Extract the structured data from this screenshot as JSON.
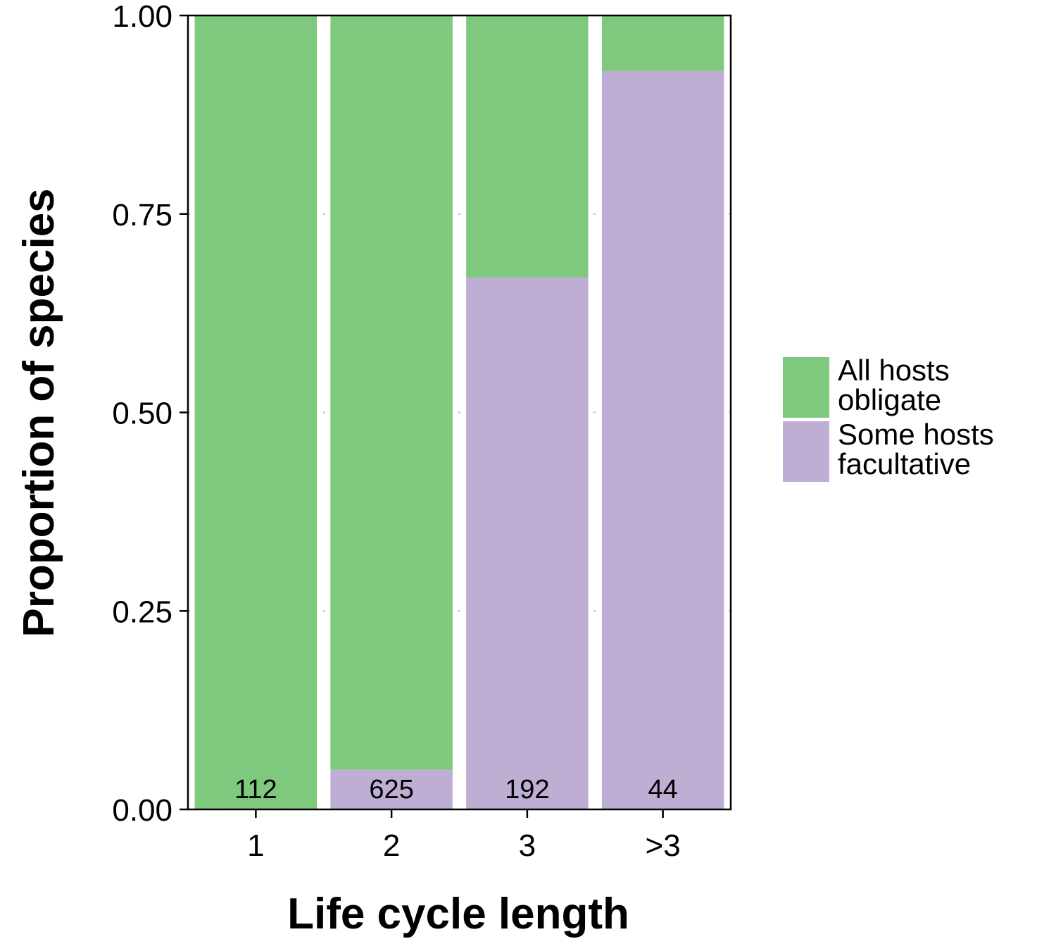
{
  "chart_data": {
    "type": "bar",
    "stacked": true,
    "xlabel": "Life cycle length",
    "ylabel": "Proportion of species",
    "categories": [
      "1",
      "2",
      "3",
      ">3"
    ],
    "ylim": [
      0,
      1
    ],
    "yticks": [
      "0.00",
      "0.25",
      "0.50",
      "0.75",
      "1.00"
    ],
    "grid": "dotted horizontal",
    "legend_position": "right",
    "counts": [
      "112",
      "625",
      "192",
      "44"
    ],
    "series": [
      {
        "name": "Some hosts facultative",
        "color": "#beaed4",
        "values": [
          0.0,
          0.05,
          0.67,
          0.93
        ]
      },
      {
        "name": "All hosts obligate",
        "color": "#7fc97f",
        "values": [
          1.0,
          0.95,
          0.33,
          0.07
        ]
      }
    ],
    "legend": [
      {
        "label_line1": "All hosts",
        "label_line2": "obligate",
        "color": "#7fc97f"
      },
      {
        "label_line1": "Some hosts",
        "label_line2": "facultative",
        "color": "#beaed4"
      }
    ]
  }
}
